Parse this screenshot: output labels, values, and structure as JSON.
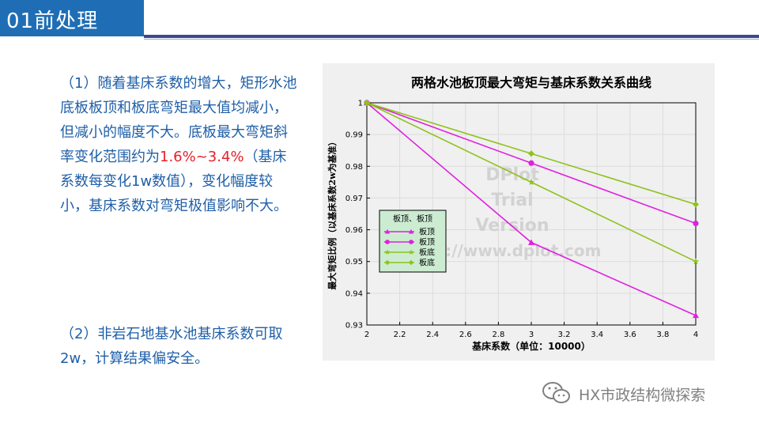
{
  "slide": {
    "title": "01前处理",
    "para1_before": "（1）随着基床系数的增大，矩形水池底板板顶和板底弯矩最大值均减小，但减小的幅度不大。底板最大弯矩斜率变化范围约为",
    "para1_highlight": "1.6%~3.4%",
    "para1_after": "（基床系数每变化1w数值），变化幅度较小，基床系数对弯矩极值影响不大。",
    "para2": "（2）非岩石地基水池基床系数可取2w，计算结果偏安全。",
    "watermark": "HX市政结构微探索",
    "colors": {
      "title_bg": "#1f6eb5",
      "text": "#1f5fa8",
      "highlight": "#e8202a"
    }
  },
  "chart_data": {
    "type": "line",
    "title": "两格水池板顶最大弯矩与基床系数关系曲线",
    "xlabel": "基床系数（单位：10000）",
    "ylabel": "最大弯矩比例（以基床系数2w为基准）",
    "x": [
      2,
      3,
      4
    ],
    "xlim": [
      2,
      4
    ],
    "ylim": [
      0.93,
      1.0
    ],
    "xticks": [
      "2",
      "2.2",
      "2.4",
      "2.6",
      "2.8",
      "3",
      "3.2",
      "3.4",
      "3.6",
      "3.8",
      "4"
    ],
    "yticks": [
      "0.93",
      "0.94",
      "0.95",
      "0.96",
      "0.97",
      "0.98",
      "0.99",
      "1"
    ],
    "legend_title": "板顶、板顶",
    "legend_position": "left",
    "watermark_lines": [
      "DPlot",
      "Trial",
      "Version",
      "http://www.dplot.com"
    ],
    "series": [
      {
        "name": "板顶",
        "values": [
          1.0,
          0.956,
          0.933
        ],
        "color": "#e020e0",
        "marker": "triangle"
      },
      {
        "name": "板顶",
        "values": [
          1.0,
          0.981,
          0.962
        ],
        "color": "#e020e0",
        "marker": "circle"
      },
      {
        "name": "板底",
        "values": [
          1.0,
          0.975,
          0.95
        ],
        "color": "#8ec21c",
        "marker": "star"
      },
      {
        "name": "板底",
        "values": [
          1.0,
          0.984,
          0.968
        ],
        "color": "#8ec21c",
        "marker": "diamond"
      }
    ]
  }
}
